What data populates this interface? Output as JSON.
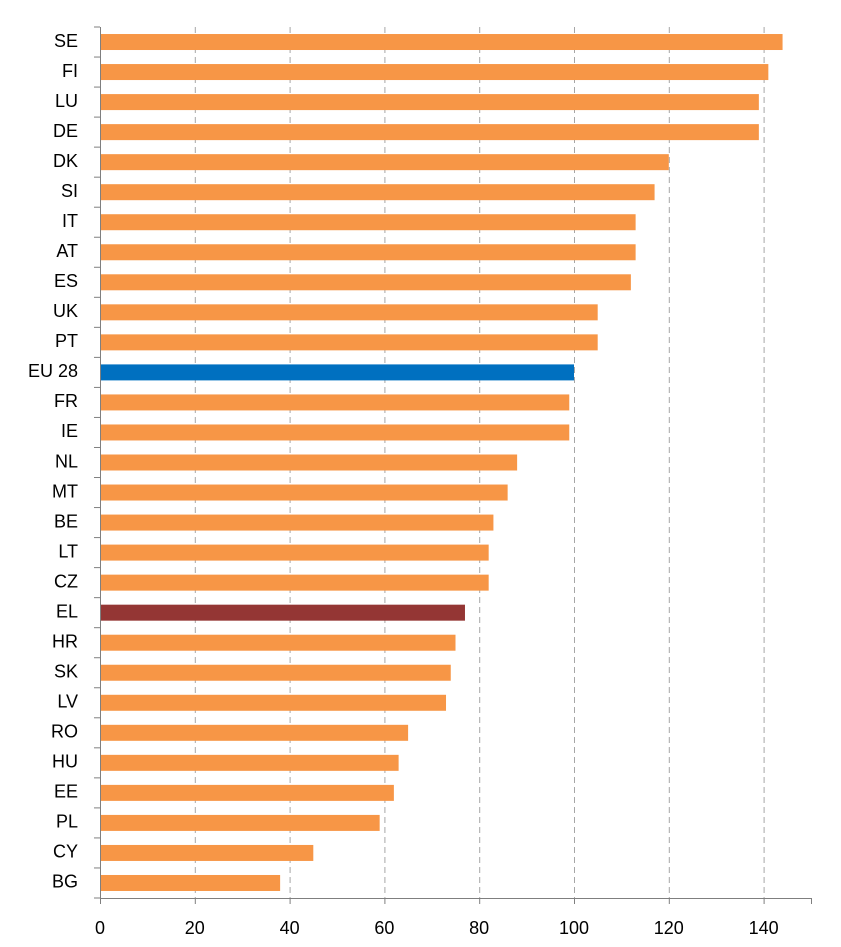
{
  "colors": {
    "default_bar": "#F79646",
    "eu_bar": "#0070C0",
    "el_bar": "#943634"
  },
  "chart_data": {
    "type": "bar",
    "orientation": "horizontal",
    "title": "",
    "xlabel": "",
    "ylabel": "",
    "xlim": [
      0,
      150
    ],
    "x_ticks": [
      0,
      20,
      40,
      60,
      80,
      100,
      120,
      140
    ],
    "grid": "vertical-dashed",
    "categories": [
      "SE",
      "FI",
      "LU",
      "DE",
      "DK",
      "SI",
      "IT",
      "AT",
      "ES",
      "UK",
      "PT",
      "EU 28",
      "FR",
      "IE",
      "NL",
      "MT",
      "BE",
      "LT",
      "CZ",
      "EL",
      "HR",
      "SK",
      "LV",
      "RO",
      "HU",
      "EE",
      "PL",
      "CY",
      "BG"
    ],
    "values": [
      144,
      141,
      139,
      139,
      120,
      117,
      113,
      113,
      112,
      105,
      105,
      100,
      99,
      99,
      88,
      86,
      83,
      82,
      82,
      77,
      75,
      74,
      73,
      65,
      63,
      62,
      59,
      45,
      38
    ],
    "highlights": {
      "EU 28": "eu_bar",
      "EL": "el_bar"
    }
  }
}
